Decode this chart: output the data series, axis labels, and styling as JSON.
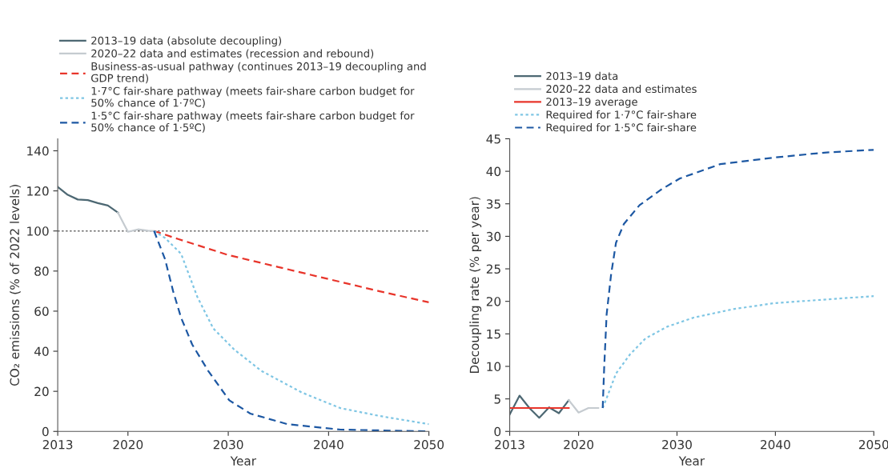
{
  "chart_data": [
    {
      "type": "line",
      "xlabel": "Year",
      "ylabel": "CO₂ emissions (% of 2022 levels)",
      "xlim": [
        2013,
        2050
      ],
      "xticks": [
        2013,
        2020,
        2030,
        2040,
        2050
      ],
      "ylim": [
        0,
        146
      ],
      "yticks": [
        0,
        20,
        40,
        60,
        80,
        100,
        120,
        140
      ],
      "legend": "top",
      "grid": false,
      "ref_lines": [
        {
          "axis": "y",
          "value": 100,
          "color": "#6b6b6b",
          "line_style": "dotted"
        }
      ],
      "series": [
        {
          "name": "2013–19 data (absolute decoupling)",
          "color": "#4d6873",
          "line_style": "solid",
          "x": [
            2013,
            2014,
            2015,
            2016,
            2017,
            2018,
            2019
          ],
          "values": [
            122,
            118,
            115.7,
            115.4,
            113.9,
            112.7,
            109.2
          ]
        },
        {
          "name": "2020–22 data and estimates (recession and rebound)",
          "color": "#c5cbd0",
          "line_style": "solid",
          "x": [
            2019,
            2020,
            2021,
            2022,
            2022.6
          ],
          "values": [
            109.2,
            99.6,
            100.8,
            100.1,
            100
          ]
        },
        {
          "name": "Business-as-usual pathway (continues 2013–19 decoupling and\nGDP trend)",
          "color": "#e8352b",
          "line_style": "dashed",
          "x": [
            2022.6,
            2025,
            2030,
            2035,
            2040,
            2045,
            2050
          ],
          "values": [
            100,
            96,
            88,
            82,
            76,
            70,
            64.4
          ]
        },
        {
          "name": "1·7°C fair-share pathway (meets fair-share carbon budget for\n50% chance of 1·7ºC)",
          "color": "#7fc6e4",
          "line_style": "dotted",
          "x": [
            2022.6,
            2023.7,
            2025.3,
            2026.9,
            2028.5,
            2030.6,
            2033.3,
            2037.3,
            2041.2,
            2045.2,
            2050
          ],
          "values": [
            100,
            96.5,
            88.6,
            67.3,
            51.4,
            40.8,
            30.2,
            19.5,
            11.6,
            7.6,
            3.6
          ]
        },
        {
          "name": "1·5°C fair-share pathway (meets fair-share carbon budget for\n50% chance of 1·5ºC)",
          "color": "#1d58a3",
          "line_style": "dashed",
          "x": [
            2022.6,
            2023.7,
            2024.5,
            2025.3,
            2026.4,
            2028,
            2030.1,
            2032.2,
            2035.9,
            2041.2,
            2050
          ],
          "values": [
            100,
            85.9,
            70,
            56.7,
            43.4,
            30.2,
            15.5,
            8.9,
            3.6,
            0.9,
            0
          ]
        }
      ]
    },
    {
      "type": "line",
      "xlabel": "Year",
      "ylabel": "Decoupling rate (% per year)",
      "xlim": [
        2013,
        2050
      ],
      "xticks": [
        2013,
        2020,
        2030,
        2040,
        2050
      ],
      "ylim": [
        0,
        45
      ],
      "yticks": [
        0,
        5,
        10,
        15,
        20,
        25,
        30,
        35,
        40,
        45
      ],
      "legend": "top left",
      "grid": false,
      "series": [
        {
          "name": "2013–19 data",
          "color": "#4d6873",
          "line_style": "solid",
          "x": [
            2013,
            2014,
            2015,
            2016,
            2017,
            2018,
            2019
          ],
          "values": [
            2.6,
            5.5,
            3.6,
            2.1,
            3.7,
            2.8,
            4.8
          ]
        },
        {
          "name": "2020–22 data and estimates",
          "color": "#c5cbd0",
          "line_style": "solid",
          "x": [
            2019,
            2020,
            2021,
            2022
          ],
          "values": [
            4.8,
            2.9,
            3.6,
            3.6
          ]
        },
        {
          "name": "2013–19 average",
          "color": "#e8352b",
          "line_style": "solid",
          "x": [
            2013,
            2019
          ],
          "values": [
            3.6,
            3.6
          ]
        },
        {
          "name": "Required for 1·7°C fair-share",
          "color": "#7fc6e4",
          "line_style": "dotted",
          "x": [
            2022.45,
            2023,
            2023.8,
            2025.2,
            2026.8,
            2029,
            2031.7,
            2035.7,
            2039.8,
            2045.2,
            2050
          ],
          "values": [
            3.6,
            5.7,
            8.9,
            11.8,
            14.3,
            16.1,
            17.5,
            18.8,
            19.7,
            20.3,
            20.8
          ]
        },
        {
          "name": "Required for 1·5°C fair-share",
          "color": "#1d58a3",
          "line_style": "dashed",
          "x": [
            2022.45,
            2022.6,
            2022.85,
            2023.3,
            2023.8,
            2024.6,
            2026.2,
            2028.4,
            2030.3,
            2034.4,
            2039.8,
            2045.2,
            2050
          ],
          "values": [
            3.6,
            9.8,
            18,
            24.1,
            29,
            31.9,
            34.8,
            37.2,
            38.9,
            41.1,
            42.1,
            42.9,
            43.3
          ]
        }
      ]
    }
  ]
}
